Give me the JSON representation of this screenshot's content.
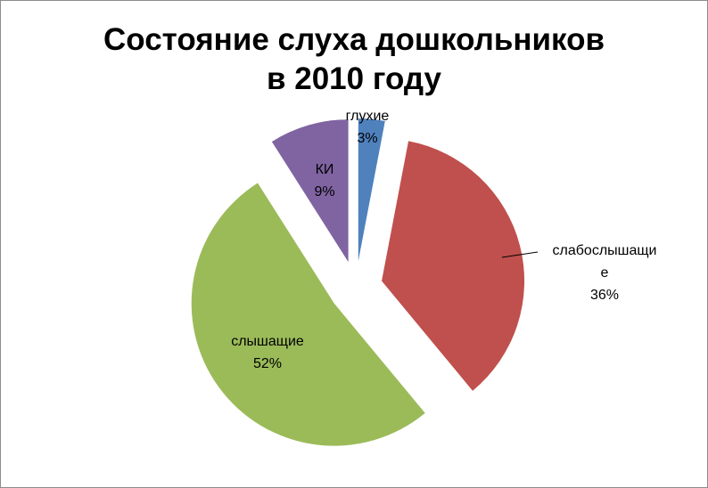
{
  "chart_data": {
    "type": "pie",
    "title": [
      "Состояние слуха дошкольников",
      "в 2010 году"
    ],
    "slices": [
      {
        "name": "глухие",
        "value": 3,
        "label_lines": [
          "глухие",
          "3%"
        ],
        "color": "#4f81bd"
      },
      {
        "name": "слабослышащие",
        "value": 36,
        "label_lines": [
          "слабослышащи",
          "е",
          "36%"
        ],
        "color": "#c0504d"
      },
      {
        "name": "слышащие",
        "value": 52,
        "label_lines": [
          "слышащие",
          "52%"
        ],
        "color": "#9bbb59"
      },
      {
        "name": "КИ",
        "value": 9,
        "label_lines": [
          "КИ",
          "9%"
        ],
        "color": "#8064a2"
      }
    ],
    "legend": "none"
  }
}
